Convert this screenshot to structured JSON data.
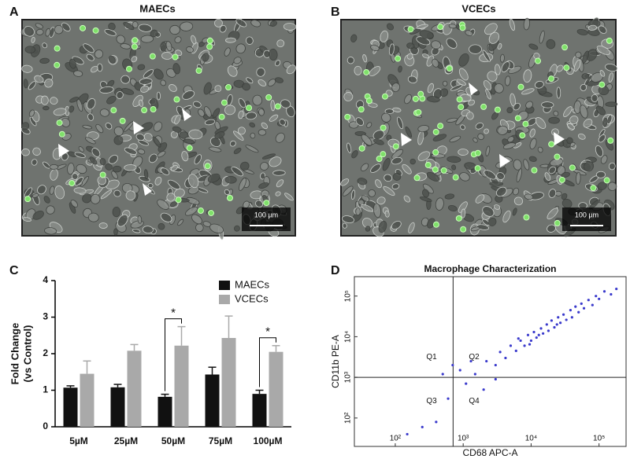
{
  "panel_labels": [
    "A",
    "B",
    "C",
    "D"
  ],
  "micrographs": [
    {
      "title": "MAECs",
      "scale_bar": "100 µm"
    },
    {
      "title": "VCECs",
      "scale_bar": "100 µm"
    }
  ],
  "chart_data": [
    {
      "type": "bar",
      "categories": [
        "5µM",
        "25µM",
        "50µM",
        "75µM",
        "100µM"
      ],
      "ylabel": [
        "Fold Change",
        "(vs Control)"
      ],
      "ylim": [
        0,
        4
      ],
      "yticks": [
        0,
        1,
        2,
        3,
        4
      ],
      "legend": "top-right",
      "series": [
        {
          "name": "MAECs",
          "color": "#111111",
          "values": [
            1.07,
            1.08,
            0.82,
            1.43,
            0.9
          ],
          "errors": [
            0.05,
            0.08,
            0.07,
            0.2,
            0.1
          ]
        },
        {
          "name": "VCECs",
          "color": "#a9a9a9",
          "values": [
            1.45,
            2.08,
            2.22,
            2.43,
            2.05
          ],
          "errors": [
            0.35,
            0.17,
            0.52,
            0.6,
            0.17
          ]
        }
      ],
      "significance": [
        {
          "category": "50µM",
          "text": "*"
        },
        {
          "category": "100µM",
          "text": "*"
        }
      ]
    },
    {
      "type": "scatter",
      "title": "Macrophage Characterization",
      "xlabel": "CD68 APC-A",
      "ylabel": "CD11b PE-A",
      "xscale": "log",
      "yscale": "log",
      "xlim": [
        25,
        250000
      ],
      "ylim": [
        20,
        300000
      ],
      "xticks": [
        {
          "value": 100,
          "label": "10²"
        },
        {
          "value": 1000,
          "label": "10³"
        },
        {
          "value": 10000,
          "label": "10⁴"
        },
        {
          "value": 100000,
          "label": "10⁵"
        }
      ],
      "yticks": [
        {
          "value": 100,
          "label": "10²"
        },
        {
          "value": 1000,
          "label": "10³"
        },
        {
          "value": 10000,
          "label": "10⁴"
        },
        {
          "value": 100000,
          "label": "10⁵"
        }
      ],
      "gates": {
        "x": 710,
        "y": 1000
      },
      "quadrants": [
        "Q1",
        "Q2",
        "Q3",
        "Q4"
      ],
      "color": "#3a3acc",
      "x": [
        1500,
        2200,
        3000,
        3500,
        4200,
        5000,
        6000,
        7000,
        8000,
        9000,
        10000,
        11000,
        12000,
        14000,
        15000,
        17000,
        18000,
        20000,
        22000,
        25000,
        27000,
        30000,
        33000,
        38000,
        40000,
        45000,
        50000,
        55000,
        60000,
        70000,
        80000,
        90000,
        100000,
        120000,
        150000,
        180000,
        6500,
        9500,
        13000,
        24000,
        400,
        250,
        600,
        900,
        1100,
        2000,
        1300,
        700,
        150,
        3000,
        500
      ],
      "y": [
        1200,
        2500,
        2000,
        4200,
        3000,
        6000,
        4500,
        8000,
        6000,
        11000,
        8000,
        13000,
        9500,
        16000,
        12000,
        20000,
        14000,
        25000,
        17000,
        30000,
        22000,
        35000,
        26000,
        45000,
        30000,
        55000,
        40000,
        65000,
        50000,
        80000,
        60000,
        100000,
        85000,
        130000,
        110000,
        150000,
        9000,
        6500,
        11000,
        20000,
        80,
        60,
        300,
        1500,
        700,
        500,
        2500,
        2000,
        40,
        900,
        1200
      ]
    }
  ]
}
